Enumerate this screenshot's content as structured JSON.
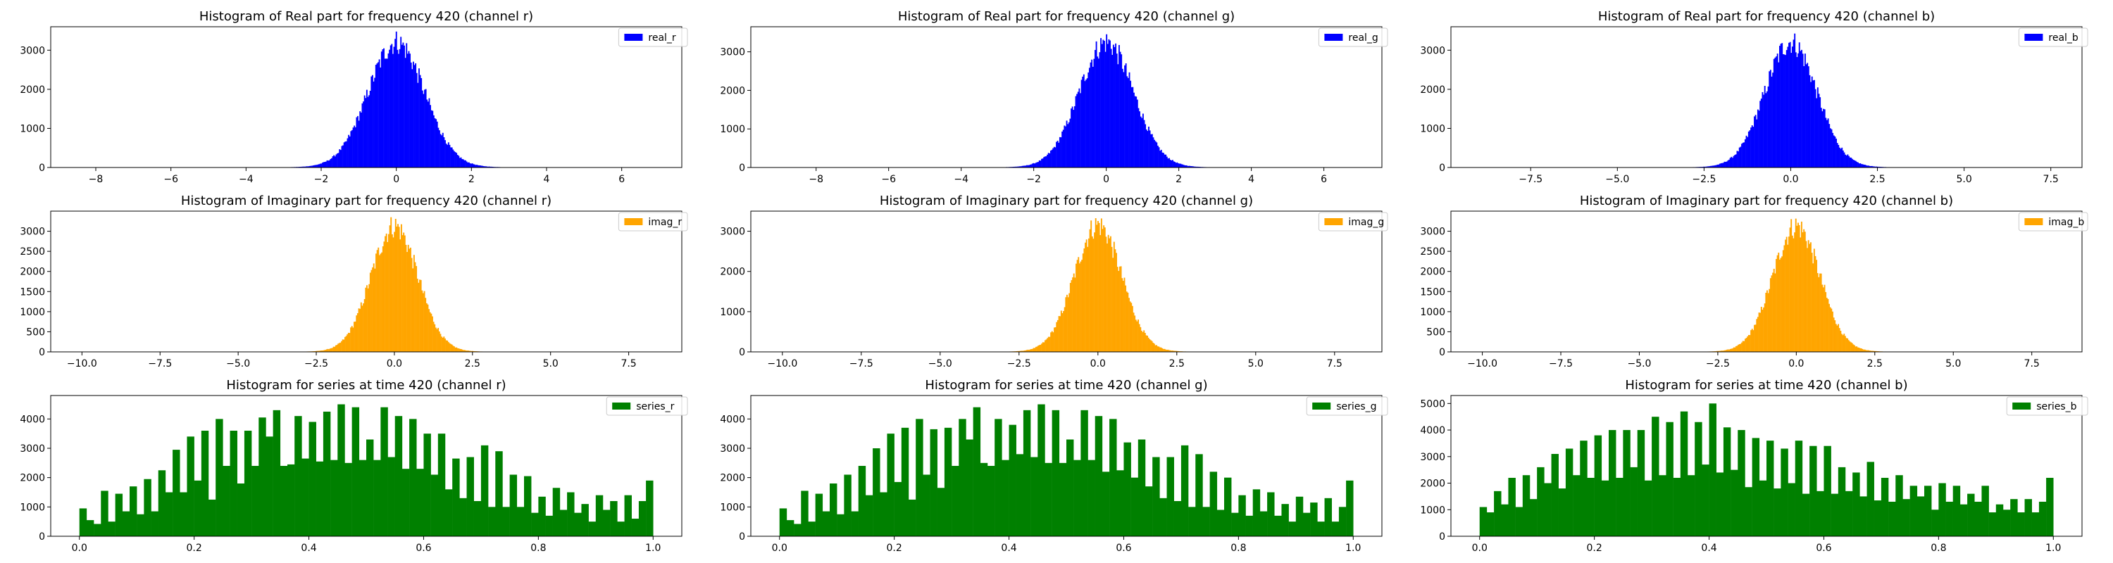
{
  "chart_data": [
    {
      "type": "bar",
      "id": "real_r",
      "title": "Histogram of Real part for frequency 420 (channel r)",
      "legend": "real_r",
      "color": "#0000ff",
      "legend_position": "top-right",
      "xlim": [
        -9.2,
        7.6
      ],
      "ylim": [
        0,
        3600
      ],
      "xticks": [
        -8,
        -6,
        -4,
        -2,
        0,
        2,
        4,
        6
      ],
      "xtick_labels": [
        "−8",
        "−6",
        "−4",
        "−2",
        "0",
        "2",
        "4",
        "6"
      ],
      "yticks": [
        0,
        1000,
        2000,
        3000
      ],
      "yticks_labels": [
        "0",
        "1000",
        "2000",
        "3000"
      ],
      "distribution": {
        "kind": "normal",
        "mean": 0.0,
        "peak": 3380,
        "sigma": 0.75,
        "tail": 0.35,
        "xmin": -8.2,
        "xmax": 6.9,
        "bins": 500
      }
    },
    {
      "type": "bar",
      "id": "real_g",
      "title": "Histogram of Real part for frequency 420 (channel g)",
      "legend": "real_g",
      "color": "#0000ff",
      "legend_position": "top-right",
      "xlim": [
        -9.8,
        7.6
      ],
      "ylim": [
        0,
        3650
      ],
      "xticks": [
        -8,
        -6,
        -4,
        -2,
        0,
        2,
        4,
        6
      ],
      "xtick_labels": [
        "−8",
        "−6",
        "−4",
        "−2",
        "0",
        "2",
        "4",
        "6"
      ],
      "yticks": [
        0,
        1000,
        2000,
        3000
      ],
      "yticks_labels": [
        "0",
        "1000",
        "2000",
        "3000"
      ],
      "distribution": {
        "kind": "normal",
        "mean": 0.0,
        "peak": 3420,
        "sigma": 0.75,
        "tail": 0.35,
        "xmin": -8.8,
        "xmax": 6.9,
        "bins": 500
      }
    },
    {
      "type": "bar",
      "id": "real_b",
      "title": "Histogram of Real part for frequency 420 (channel b)",
      "legend": "real_b",
      "color": "#0000ff",
      "legend_position": "top-right",
      "xlim": [
        -9.8,
        8.4
      ],
      "ylim": [
        0,
        3600
      ],
      "xticks": [
        -7.5,
        -5.0,
        -2.5,
        0.0,
        2.5,
        5.0,
        7.5
      ],
      "xtick_labels": [
        "−7.5",
        "−5.0",
        "−2.5",
        "0.0",
        "2.5",
        "5.0",
        "7.5"
      ],
      "yticks": [
        0,
        1000,
        2000,
        3000
      ],
      "yticks_labels": [
        "0",
        "1000",
        "2000",
        "3000"
      ],
      "distribution": {
        "kind": "normal",
        "mean": 0.0,
        "peak": 3380,
        "sigma": 0.75,
        "tail": 0.35,
        "xmin": -8.9,
        "xmax": 7.7,
        "bins": 500
      }
    },
    {
      "type": "bar",
      "id": "imag_r",
      "title": "Histogram of Imaginary part for frequency 420 (channel r)",
      "legend": "imag_r",
      "color": "#ffa500",
      "legend_position": "top-right",
      "xlim": [
        -11.0,
        9.2
      ],
      "ylim": [
        0,
        3500
      ],
      "xticks": [
        -10.0,
        -7.5,
        -5.0,
        -2.5,
        0.0,
        2.5,
        5.0,
        7.5
      ],
      "xtick_labels": [
        "−10.0",
        "−7.5",
        "−5.0",
        "−2.5",
        "0.0",
        "2.5",
        "5.0",
        "7.5"
      ],
      "yticks": [
        0,
        500,
        1000,
        1500,
        2000,
        2500,
        3000
      ],
      "yticks_labels": [
        "0",
        "500",
        "1000",
        "1500",
        "2000",
        "2500",
        "3000"
      ],
      "distribution": {
        "kind": "normal",
        "mean": 0.0,
        "peak": 3300,
        "sigma": 0.75,
        "tail": 0.35,
        "xmin": -10.1,
        "xmax": 8.3,
        "bins": 500
      }
    },
    {
      "type": "bar",
      "id": "imag_g",
      "title": "Histogram of Imaginary part for frequency 420 (channel g)",
      "legend": "imag_g",
      "color": "#ffa500",
      "legend_position": "top-right",
      "xlim": [
        -11.0,
        9.0
      ],
      "ylim": [
        0,
        3500
      ],
      "xticks": [
        -10.0,
        -7.5,
        -5.0,
        -2.5,
        0.0,
        2.5,
        5.0,
        7.5
      ],
      "xtick_labels": [
        "−10.0",
        "−7.5",
        "−5.0",
        "−2.5",
        "0.0",
        "2.5",
        "5.0",
        "7.5"
      ],
      "yticks": [
        0,
        1000,
        2000,
        3000
      ],
      "yticks_labels": [
        "0",
        "1000",
        "2000",
        "3000"
      ],
      "distribution": {
        "kind": "normal",
        "mean": 0.0,
        "peak": 3330,
        "sigma": 0.75,
        "tail": 0.35,
        "xmin": -10.1,
        "xmax": 8.1,
        "bins": 500
      }
    },
    {
      "type": "bar",
      "id": "imag_b",
      "title": "Histogram of Imaginary part for frequency 420 (channel b)",
      "legend": "imag_b",
      "color": "#ffa500",
      "legend_position": "top-right",
      "xlim": [
        -11.0,
        9.1
      ],
      "ylim": [
        0,
        3500
      ],
      "xticks": [
        -10.0,
        -7.5,
        -5.0,
        -2.5,
        0.0,
        2.5,
        5.0,
        7.5
      ],
      "xtick_labels": [
        "−10.0",
        "−7.5",
        "−5.0",
        "−2.5",
        "0.0",
        "2.5",
        "5.0",
        "7.5"
      ],
      "yticks": [
        0,
        500,
        1000,
        1500,
        2000,
        2500,
        3000
      ],
      "yticks_labels": [
        "0",
        "500",
        "1000",
        "1500",
        "2000",
        "2500",
        "3000"
      ],
      "distribution": {
        "kind": "normal",
        "mean": 0.0,
        "peak": 3300,
        "sigma": 0.75,
        "tail": 0.35,
        "xmin": -10.1,
        "xmax": 8.2,
        "bins": 500
      }
    },
    {
      "type": "bar",
      "id": "series_r",
      "title": "Histogram for series at time 420 (channel r)",
      "legend": "series_r",
      "color": "#008000",
      "legend_position": "top-right",
      "xlim": [
        -0.05,
        1.05
      ],
      "ylim": [
        0,
        4800
      ],
      "xticks": [
        0.0,
        0.2,
        0.4,
        0.6,
        0.8,
        1.0
      ],
      "xtick_labels": [
        "0.0",
        "0.2",
        "0.4",
        "0.6",
        "0.8",
        "1.0"
      ],
      "yticks": [
        0,
        1000,
        2000,
        3000,
        4000
      ],
      "yticks_labels": [
        "0",
        "1000",
        "2000",
        "3000",
        "4000"
      ],
      "x_range": [
        0.0,
        1.0
      ],
      "values": [
        950,
        550,
        420,
        1550,
        500,
        1450,
        850,
        1700,
        750,
        1950,
        850,
        2250,
        1500,
        2950,
        1500,
        3400,
        1900,
        3600,
        1250,
        4000,
        2400,
        3600,
        1800,
        3600,
        2400,
        4050,
        3400,
        4300,
        2400,
        2450,
        4100,
        2650,
        3900,
        2550,
        4250,
        2600,
        4500,
        2500,
        4400,
        2600,
        3300,
        2600,
        4400,
        2700,
        4100,
        2300,
        4000,
        2300,
        3500,
        2100,
        3500,
        1600,
        2650,
        1300,
        2700,
        1200,
        3100,
        1000,
        2900,
        1000,
        2100,
        1000,
        2050,
        800,
        1350,
        700,
        1650,
        900,
        1500,
        800,
        1100,
        500,
        1400,
        900,
        1200,
        500,
        1400,
        600,
        1200,
        1900
      ]
    },
    {
      "type": "bar",
      "id": "series_g",
      "title": "Histogram for series at time 420 (channel g)",
      "legend": "series_g",
      "color": "#008000",
      "legend_position": "top-right",
      "xlim": [
        -0.05,
        1.05
      ],
      "ylim": [
        0,
        4800
      ],
      "xticks": [
        0.0,
        0.2,
        0.4,
        0.6,
        0.8,
        1.0
      ],
      "xtick_labels": [
        "0.0",
        "0.2",
        "0.4",
        "0.6",
        "0.8",
        "1.0"
      ],
      "yticks": [
        0,
        1000,
        2000,
        3000,
        4000
      ],
      "yticks_labels": [
        "0",
        "1000",
        "2000",
        "3000",
        "4000"
      ],
      "x_range": [
        0.0,
        1.0
      ],
      "values": [
        950,
        550,
        420,
        1550,
        500,
        1450,
        850,
        1800,
        750,
        2100,
        850,
        2400,
        1400,
        3000,
        1500,
        3500,
        1850,
        3700,
        1250,
        4000,
        2100,
        3650,
        1650,
        3700,
        2400,
        4000,
        3300,
        4400,
        2500,
        2400,
        4000,
        2600,
        3800,
        2800,
        4300,
        2700,
        4500,
        2500,
        4300,
        2500,
        3300,
        2600,
        4300,
        2600,
        4100,
        2200,
        4000,
        2250,
        3200,
        2000,
        3300,
        1700,
        2700,
        1300,
        2700,
        1200,
        3100,
        1000,
        2800,
        1000,
        2200,
        900,
        2000,
        800,
        1400,
        700,
        1600,
        850,
        1500,
        700,
        1100,
        500,
        1350,
        800,
        1150,
        500,
        1300,
        500,
        1000,
        1900
      ]
    },
    {
      "type": "bar",
      "id": "series_b",
      "title": "Histogram for series at time 420 (channel b)",
      "legend": "series_b",
      "color": "#008000",
      "legend_position": "top-right",
      "xlim": [
        -0.05,
        1.05
      ],
      "ylim": [
        0,
        5300
      ],
      "xticks": [
        0.0,
        0.2,
        0.4,
        0.6,
        0.8,
        1.0
      ],
      "xtick_labels": [
        "0.0",
        "0.2",
        "0.4",
        "0.6",
        "0.8",
        "1.0"
      ],
      "yticks": [
        0,
        1000,
        2000,
        3000,
        4000,
        5000
      ],
      "yticks_labels": [
        "0",
        "1000",
        "2000",
        "3000",
        "4000",
        "5000"
      ],
      "x_range": [
        0.0,
        1.0
      ],
      "values": [
        1100,
        900,
        1700,
        1200,
        2200,
        1100,
        2300,
        1400,
        2600,
        2000,
        3100,
        1800,
        3300,
        2300,
        3600,
        2200,
        3800,
        2100,
        4000,
        2200,
        4000,
        2600,
        4000,
        2100,
        4500,
        2300,
        4300,
        2200,
        4700,
        2300,
        4300,
        2700,
        5000,
        2400,
        4100,
        2500,
        4000,
        1850,
        3700,
        2100,
        3600,
        1800,
        3300,
        2000,
        3600,
        1600,
        3400,
        1700,
        3400,
        1600,
        2600,
        1700,
        2400,
        1500,
        2800,
        1350,
        2200,
        1300,
        2300,
        1400,
        1900,
        1500,
        1900,
        1000,
        2000,
        1300,
        1900,
        1200,
        1600,
        1300,
        1900,
        900,
        1200,
        1000,
        1400,
        900,
        1400,
        900,
        1300,
        2200
      ]
    }
  ]
}
